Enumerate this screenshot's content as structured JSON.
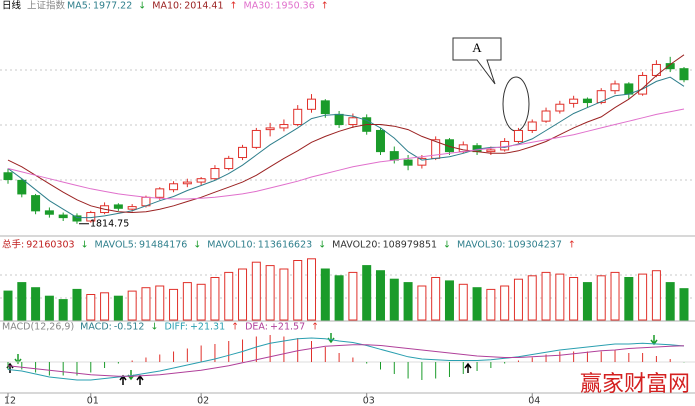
{
  "chart_data": {
    "type": "candlestick",
    "header": {
      "period": "日线",
      "index_name": "上证指数"
    },
    "categories": [
      "12",
      null,
      null,
      null,
      null,
      null,
      "01",
      null,
      null,
      null,
      null,
      null,
      null,
      null,
      "02",
      null,
      null,
      null,
      null,
      null,
      null,
      null,
      null,
      null,
      null,
      null,
      "03",
      null,
      null,
      null,
      null,
      null,
      null,
      null,
      null,
      null,
      null,
      null,
      "04",
      null,
      null,
      null,
      null,
      null,
      null,
      null,
      null,
      null,
      null,
      null
    ],
    "up_color": "#e0302a",
    "down_color": "#1a9b2a",
    "ylim": [
      1805,
      2065
    ],
    "ohlc": [
      [
        1875,
        1880,
        1862,
        1867
      ],
      [
        1866,
        1868,
        1846,
        1850
      ],
      [
        1848,
        1850,
        1826,
        1830
      ],
      [
        1830,
        1834,
        1822,
        1826
      ],
      [
        1825,
        1828,
        1818,
        1822
      ],
      [
        1824,
        1827,
        1814.75,
        1818
      ],
      [
        1818,
        1830,
        1816,
        1828
      ],
      [
        1828,
        1840,
        1826,
        1836
      ],
      [
        1837,
        1839,
        1830,
        1833
      ],
      [
        1832,
        1838,
        1829,
        1835
      ],
      [
        1836,
        1848,
        1834,
        1846
      ],
      [
        1846,
        1858,
        1843,
        1856
      ],
      [
        1855,
        1865,
        1852,
        1862
      ],
      [
        1862,
        1868,
        1858,
        1864
      ],
      [
        1864,
        1870,
        1860,
        1868
      ],
      [
        1868,
        1884,
        1866,
        1880
      ],
      [
        1880,
        1895,
        1878,
        1892
      ],
      [
        1893,
        1908,
        1890,
        1905
      ],
      [
        1905,
        1928,
        1903,
        1925
      ],
      [
        1926,
        1934,
        1918,
        1928
      ],
      [
        1928,
        1938,
        1924,
        1932
      ],
      [
        1932,
        1955,
        1930,
        1950
      ],
      [
        1950,
        1968,
        1946,
        1962
      ],
      [
        1960,
        1962,
        1940,
        1945
      ],
      [
        1944,
        1948,
        1928,
        1932
      ],
      [
        1932,
        1945,
        1928,
        1940
      ],
      [
        1940,
        1944,
        1920,
        1924
      ],
      [
        1925,
        1928,
        1896,
        1900
      ],
      [
        1900,
        1906,
        1886,
        1890
      ],
      [
        1890,
        1896,
        1878,
        1884
      ],
      [
        1884,
        1896,
        1880,
        1892
      ],
      [
        1892,
        1918,
        1890,
        1914
      ],
      [
        1914,
        1916,
        1896,
        1900
      ],
      [
        1900,
        1912,
        1898,
        1908
      ],
      [
        1907,
        1910,
        1896,
        1900
      ],
      [
        1900,
        1906,
        1896,
        1902
      ],
      [
        1902,
        1916,
        1900,
        1912
      ],
      [
        1912,
        1928,
        1910,
        1925
      ],
      [
        1925,
        1938,
        1922,
        1935
      ],
      [
        1936,
        1952,
        1934,
        1948
      ],
      [
        1948,
        1960,
        1945,
        1956
      ],
      [
        1957,
        1966,
        1952,
        1962
      ],
      [
        1962,
        1964,
        1952,
        1958
      ],
      [
        1958,
        1975,
        1956,
        1972
      ],
      [
        1972,
        1984,
        1968,
        1980
      ],
      [
        1980,
        1982,
        1962,
        1968
      ],
      [
        1968,
        1994,
        1966,
        1990
      ],
      [
        1990,
        2008,
        1988,
        2003
      ],
      [
        2004,
        2012,
        1994,
        1998
      ],
      [
        1998,
        2000,
        1982,
        1985
      ]
    ],
    "ma_lines": [
      {
        "name": "MA5:",
        "color": "#2f7f8c",
        "trend": "↓",
        "trend_color": "#1a9b2a",
        "values": [
          1880,
          1868,
          1855,
          1842,
          1832,
          1822,
          1822,
          1824,
          1827,
          1830,
          1836,
          1842,
          1847,
          1854,
          1860,
          1866,
          1874,
          1884,
          1896,
          1908,
          1918,
          1928,
          1939,
          1943,
          1944,
          1942,
          1937,
          1928,
          1916,
          1900,
          1890,
          1892,
          1894,
          1898,
          1903,
          1905,
          1905,
          1909,
          1915,
          1925,
          1935,
          1945,
          1952,
          1959,
          1966,
          1968,
          1974,
          1983,
          1988,
          1977.22
        ]
      },
      {
        "name": "MA10:",
        "color": "#9b2222",
        "trend": "↑",
        "trend_color": "#e0302a",
        "values": [
          1890,
          1882,
          1872,
          1862,
          1852,
          1843,
          1836,
          1832,
          1829,
          1828,
          1829,
          1832,
          1836,
          1841,
          1846,
          1852,
          1858,
          1864,
          1872,
          1882,
          1892,
          1901,
          1911,
          1918,
          1924,
          1929,
          1932,
          1932,
          1930,
          1926,
          1918,
          1912,
          1906,
          1902,
          1900,
          1898,
          1898,
          1901,
          1906,
          1912,
          1920,
          1928,
          1935,
          1941,
          1952,
          1962,
          1975,
          1990,
          2003,
          2014.41
        ]
      },
      {
        "name": "MA30:",
        "color": "#e070cc",
        "trend": "↑",
        "trend_color": "#e0302a",
        "values": [
          1880,
          1876,
          1872,
          1868,
          1864,
          1860,
          1856,
          1853,
          1850,
          1848,
          1846,
          1845,
          1844,
          1844,
          1845,
          1846,
          1848,
          1850,
          1853,
          1857,
          1861,
          1865,
          1870,
          1874,
          1878,
          1882,
          1885,
          1888,
          1890,
          1892,
          1894,
          1896,
          1898,
          1900,
          1902,
          1904,
          1906,
          1908,
          1911,
          1914,
          1917,
          1920,
          1924,
          1928,
          1932,
          1936,
          1940,
          1944,
          1947,
          1950.36
        ]
      }
    ],
    "annotation": "A",
    "volume": {
      "label": "总手:",
      "trend": "↓",
      "trend_color": "#1a9b2a",
      "ylim": [
        0,
        200000000
      ],
      "values": [
        85000000,
        110000000,
        95000000,
        70000000,
        60000000,
        90000000,
        75000000,
        80000000,
        70000000,
        85000000,
        95000000,
        100000000,
        90000000,
        110000000,
        105000000,
        125000000,
        140000000,
        150000000,
        170000000,
        160000000,
        150000000,
        175000000,
        180000000,
        150000000,
        130000000,
        140000000,
        160000000,
        145000000,
        120000000,
        110000000,
        100000000,
        125000000,
        115000000,
        105000000,
        95000000,
        90000000,
        100000000,
        120000000,
        130000000,
        140000000,
        135000000,
        125000000,
        110000000,
        130000000,
        140000000,
        125000000,
        135000000,
        145000000,
        110000000,
        92160303
      ],
      "ma": [
        {
          "name": "MAVOL5:",
          "value": 91484176,
          "trend": "↓",
          "color": "#2f7f8c",
          "trend_color": "#1a9b2a"
        },
        {
          "name": "MAVOL10:",
          "value": 113616623,
          "trend": "↓",
          "color": "#2f7f8c",
          "trend_color": "#1a9b2a"
        },
        {
          "name": "MAVOL20:",
          "value": 108979851,
          "trend": "↓",
          "color": "#333333",
          "trend_color": "#1a9b2a"
        },
        {
          "name": "MAVOL30:",
          "value": 109304237,
          "trend": "↑",
          "color": "#2f7f8c",
          "trend_color": "#e0302a"
        }
      ]
    },
    "macd": {
      "title": "MACD(12,26,9)",
      "hist_name": "MACD:",
      "hist_trend": "↓",
      "ylim": [
        -40,
        40
      ],
      "values": [
        -10,
        -10,
        -14,
        -18,
        -18,
        -18,
        -14,
        -8,
        -2,
        2,
        6,
        10,
        14,
        18,
        22,
        24,
        28,
        30,
        34,
        36,
        34,
        32,
        28,
        20,
        12,
        6,
        -2,
        -10,
        -16,
        -22,
        -24,
        -22,
        -20,
        -16,
        -12,
        -8,
        -2,
        2,
        6,
        10,
        14,
        14,
        14,
        14,
        16,
        12,
        12,
        8,
        4,
        -0.512
      ],
      "lines": [
        {
          "name": "DIFF:",
          "color": "#2a9fb0",
          "trend": "↑",
          "last_label": "+21.31",
          "values": [
            -10,
            -12,
            -16,
            -20,
            -22,
            -24,
            -24,
            -22,
            -20,
            -18,
            -15,
            -12,
            -8,
            -4,
            0,
            4,
            9,
            14,
            20,
            25,
            28,
            31,
            32,
            31,
            28,
            26,
            22,
            17,
            12,
            7,
            4,
            3,
            2,
            2,
            2,
            3,
            5,
            7,
            10,
            13,
            16,
            18,
            20,
            22,
            24,
            24,
            25,
            24,
            23,
            21.31
          ]
        },
        {
          "name": "DEA:",
          "color": "#b0409a",
          "trend": "↑",
          "last_label": "+21.57",
          "values": [
            -5,
            -7,
            -9,
            -11,
            -13,
            -15,
            -17,
            -18,
            -19,
            -19,
            -18,
            -17,
            -15,
            -13,
            -11,
            -8,
            -5,
            -1,
            3,
            7,
            11,
            15,
            18,
            21,
            22,
            23,
            23,
            22,
            20,
            18,
            16,
            14,
            12,
            10,
            8,
            7,
            6,
            6,
            7,
            8,
            9,
            11,
            13,
            15,
            16,
            18,
            19,
            20,
            21,
            21.57
          ]
        }
      ]
    },
    "watermark": "赢家财富网"
  }
}
